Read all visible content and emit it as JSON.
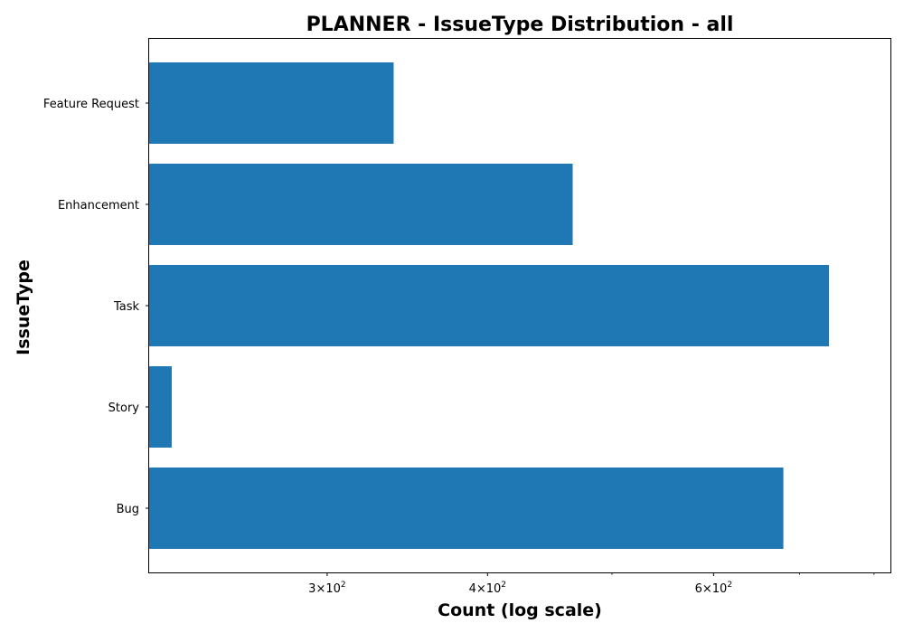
{
  "chart_data": {
    "type": "bar",
    "orientation": "horizontal",
    "title": "PLANNER - IssueType Distribution - all",
    "xlabel": "Count (log scale)",
    "ylabel": "IssueType",
    "x_scale": "log",
    "xlim": [
      218,
      824
    ],
    "categories": [
      "Bug",
      "Story",
      "Task",
      "Enhancement",
      "Feature Request"
    ],
    "values": [
      680,
      227,
      738,
      466,
      338
    ],
    "x_tick_labels": [
      {
        "value": 300,
        "mantissa": "3",
        "base": "10",
        "exponent": "2"
      },
      {
        "value": 400,
        "mantissa": "4",
        "base": "10",
        "exponent": "2"
      },
      {
        "value": 600,
        "mantissa": "6",
        "base": "10",
        "exponent": "2"
      }
    ],
    "x_minor_ticks": [
      500,
      700,
      800
    ],
    "bar_color": "#1f77b4",
    "grid": false,
    "legend": "none"
  }
}
